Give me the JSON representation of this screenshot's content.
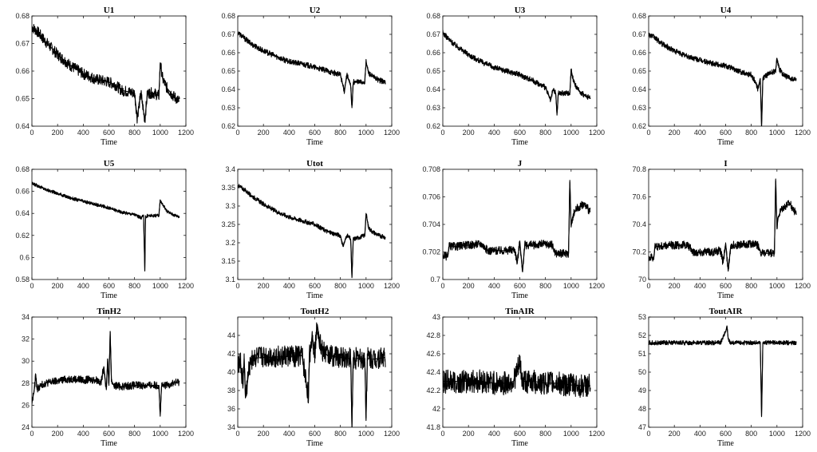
{
  "chart_data": [
    {
      "type": "line",
      "title": "U1",
      "xlabel": "Time",
      "xlim": [
        0,
        1200
      ],
      "ylim": [
        0.64,
        0.68
      ],
      "xticks": [
        "0",
        "200",
        "400",
        "600",
        "800",
        "1000",
        "1200"
      ],
      "yticks": [
        "0.64",
        "0.65",
        "0.66",
        "0.67",
        "0.68"
      ],
      "series": [
        {
          "x": [
            0,
            50,
            100,
            200,
            300,
            400,
            500,
            600,
            650,
            700,
            800,
            820,
            850,
            880,
            900,
            950,
            990,
            1000,
            1020,
            1050,
            1100,
            1150
          ],
          "y": [
            0.676,
            0.674,
            0.671,
            0.666,
            0.662,
            0.659,
            0.657,
            0.656,
            0.655,
            0.653,
            0.652,
            0.643,
            0.652,
            0.642,
            0.652,
            0.652,
            0.651,
            0.663,
            0.657,
            0.654,
            0.651,
            0.649
          ],
          "amp": 0.002
        }
      ]
    },
    {
      "type": "line",
      "title": "U2",
      "xlabel": "Time",
      "xlim": [
        0,
        1200
      ],
      "ylim": [
        0.62,
        0.68
      ],
      "xticks": [
        "0",
        "200",
        "400",
        "600",
        "800",
        "1000",
        "1200"
      ],
      "yticks": [
        "0.62",
        "0.63",
        "0.64",
        "0.65",
        "0.66",
        "0.67",
        "0.68"
      ],
      "series": [
        {
          "x": [
            0,
            50,
            100,
            200,
            300,
            400,
            500,
            600,
            700,
            800,
            830,
            850,
            880,
            890,
            900,
            950,
            990,
            1000,
            1020,
            1050,
            1100,
            1150
          ],
          "y": [
            0.671,
            0.668,
            0.665,
            0.661,
            0.658,
            0.655,
            0.654,
            0.652,
            0.65,
            0.648,
            0.639,
            0.648,
            0.642,
            0.63,
            0.644,
            0.644,
            0.644,
            0.655,
            0.649,
            0.647,
            0.645,
            0.644
          ],
          "amp": 0.0015
        }
      ]
    },
    {
      "type": "line",
      "title": "U3",
      "xlabel": "Time",
      "xlim": [
        0,
        1200
      ],
      "ylim": [
        0.62,
        0.68
      ],
      "xticks": [
        "0",
        "200",
        "400",
        "600",
        "800",
        "1000",
        "1200"
      ],
      "yticks": [
        "0.62",
        "0.63",
        "0.64",
        "0.65",
        "0.66",
        "0.67",
        "0.68"
      ],
      "series": [
        {
          "x": [
            0,
            50,
            100,
            200,
            300,
            400,
            500,
            600,
            700,
            800,
            840,
            860,
            880,
            890,
            900,
            950,
            990,
            1000,
            1020,
            1050,
            1100,
            1150
          ],
          "y": [
            0.671,
            0.667,
            0.664,
            0.659,
            0.655,
            0.652,
            0.65,
            0.648,
            0.645,
            0.641,
            0.634,
            0.64,
            0.638,
            0.626,
            0.638,
            0.638,
            0.638,
            0.651,
            0.644,
            0.64,
            0.637,
            0.635
          ],
          "amp": 0.0015
        }
      ]
    },
    {
      "type": "line",
      "title": "U4",
      "xlabel": "Time",
      "xlim": [
        0,
        1200
      ],
      "ylim": [
        0.62,
        0.68
      ],
      "xticks": [
        "0",
        "200",
        "400",
        "600",
        "800",
        "1000",
        "1200"
      ],
      "yticks": [
        "0.62",
        "0.63",
        "0.64",
        "0.65",
        "0.66",
        "0.67",
        "0.68"
      ],
      "series": [
        {
          "x": [
            0,
            50,
            100,
            200,
            300,
            400,
            500,
            600,
            700,
            800,
            840,
            850,
            870,
            880,
            890,
            900,
            950,
            990,
            1000,
            1020,
            1050,
            1100,
            1150
          ],
          "y": [
            0.67,
            0.668,
            0.665,
            0.661,
            0.658,
            0.656,
            0.654,
            0.653,
            0.65,
            0.648,
            0.643,
            0.64,
            0.646,
            0.62,
            0.645,
            0.647,
            0.649,
            0.65,
            0.657,
            0.651,
            0.648,
            0.646,
            0.645
          ],
          "amp": 0.0015
        }
      ]
    },
    {
      "type": "line",
      "title": "U5",
      "xlabel": "Time",
      "xlim": [
        0,
        1200
      ],
      "ylim": [
        0.58,
        0.68
      ],
      "xticks": [
        "0",
        "200",
        "400",
        "600",
        "800",
        "1000",
        "1200"
      ],
      "yticks": [
        "0.58",
        "0.6",
        "0.62",
        "0.64",
        "0.66",
        "0.68"
      ],
      "series": [
        {
          "x": [
            0,
            50,
            100,
            200,
            300,
            400,
            500,
            600,
            650,
            700,
            800,
            850,
            870,
            880,
            885,
            890,
            900,
            950,
            990,
            1000,
            1050,
            1100,
            1150
          ],
          "y": [
            0.667,
            0.665,
            0.662,
            0.658,
            0.654,
            0.651,
            0.648,
            0.645,
            0.643,
            0.641,
            0.639,
            0.636,
            0.638,
            0.588,
            0.638,
            0.636,
            0.638,
            0.638,
            0.638,
            0.652,
            0.642,
            0.639,
            0.637
          ],
          "amp": 0.0015
        }
      ]
    },
    {
      "type": "line",
      "title": "Utot",
      "xlabel": "Time",
      "xlim": [
        0,
        1200
      ],
      "ylim": [
        3.1,
        3.4
      ],
      "xticks": [
        "0",
        "200",
        "400",
        "600",
        "800",
        "1000",
        "1200"
      ],
      "yticks": [
        "3.1",
        "3.15",
        "3.2",
        "3.25",
        "3.3",
        "3.35",
        "3.4"
      ],
      "series": [
        {
          "x": [
            0,
            50,
            100,
            200,
            300,
            400,
            500,
            600,
            650,
            700,
            800,
            820,
            850,
            880,
            890,
            900,
            950,
            990,
            1000,
            1020,
            1050,
            1100,
            1150
          ],
          "y": [
            3.356,
            3.345,
            3.33,
            3.305,
            3.285,
            3.27,
            3.26,
            3.25,
            3.24,
            3.23,
            3.22,
            3.19,
            3.22,
            3.21,
            3.105,
            3.21,
            3.215,
            3.22,
            3.28,
            3.24,
            3.23,
            3.22,
            3.215
          ],
          "amp": 0.006
        }
      ]
    },
    {
      "type": "line",
      "title": "J",
      "xlabel": "Time",
      "xlim": [
        0,
        1200
      ],
      "ylim": [
        0.7,
        0.708
      ],
      "xticks": [
        "0",
        "200",
        "400",
        "600",
        "800",
        "1000",
        "1200"
      ],
      "yticks": [
        "0.7",
        "0.702",
        "0.704",
        "0.706",
        "0.708"
      ],
      "series": [
        {
          "x": [
            0,
            40,
            50,
            100,
            200,
            300,
            350,
            400,
            500,
            560,
            580,
            600,
            620,
            640,
            700,
            800,
            850,
            880,
            950,
            980,
            990,
            1000,
            1010,
            1030,
            1050,
            1100,
            1150
          ],
          "y": [
            0.7017,
            0.7017,
            0.7024,
            0.7024,
            0.7025,
            0.7026,
            0.7021,
            0.7021,
            0.7021,
            0.7022,
            0.7012,
            0.7028,
            0.7006,
            0.7025,
            0.7025,
            0.7026,
            0.7025,
            0.7019,
            0.7019,
            0.7019,
            0.7072,
            0.7038,
            0.7045,
            0.705,
            0.7052,
            0.7055,
            0.7049
          ],
          "amp": 0.0003
        }
      ]
    },
    {
      "type": "line",
      "title": "I",
      "xlabel": "Time",
      "xlim": [
        0,
        1200
      ],
      "ylim": [
        70,
        70.8
      ],
      "xticks": [
        "0",
        "200",
        "400",
        "600",
        "800",
        "1000",
        "1200"
      ],
      "yticks": [
        "70",
        "70.2",
        "70.4",
        "70.6",
        "70.8"
      ],
      "series": [
        {
          "x": [
            0,
            40,
            50,
            100,
            200,
            300,
            350,
            400,
            500,
            560,
            580,
            600,
            620,
            640,
            700,
            800,
            850,
            880,
            950,
            980,
            990,
            1000,
            1010,
            1030,
            1050,
            1100,
            1150
          ],
          "y": [
            70.16,
            70.16,
            70.24,
            70.24,
            70.25,
            70.25,
            70.2,
            70.2,
            70.2,
            70.21,
            70.12,
            70.26,
            70.06,
            70.25,
            70.25,
            70.26,
            70.25,
            70.19,
            70.19,
            70.19,
            70.73,
            70.38,
            70.45,
            70.5,
            70.52,
            70.55,
            70.48
          ],
          "amp": 0.03
        }
      ]
    },
    {
      "type": "line",
      "title": "TinH2",
      "xlabel": "Time",
      "xlim": [
        0,
        1200
      ],
      "ylim": [
        24,
        34
      ],
      "xticks": [
        "0",
        "200",
        "400",
        "600",
        "800",
        "1000",
        "1200"
      ],
      "yticks": [
        "24",
        "26",
        "28",
        "30",
        "32",
        "34"
      ],
      "series": [
        {
          "x": [
            0,
            20,
            30,
            40,
            50,
            100,
            200,
            300,
            400,
            500,
            540,
            560,
            580,
            590,
            600,
            610,
            620,
            640,
            700,
            800,
            900,
            990,
            1000,
            1010,
            1050,
            1100,
            1150
          ],
          "y": [
            26.2,
            27.5,
            28.8,
            27.4,
            27.6,
            28,
            28.2,
            28.4,
            28.3,
            28.3,
            28.1,
            29.5,
            27.4,
            30.2,
            27.8,
            32.7,
            28.2,
            27.8,
            27.7,
            27.8,
            27.8,
            27.8,
            25,
            27.7,
            27.8,
            28,
            28.1
          ],
          "amp": 0.35
        }
      ]
    },
    {
      "type": "line",
      "title": "ToutH2",
      "xlabel": "Time",
      "xlim": [
        0,
        1200
      ],
      "ylim": [
        34,
        46
      ],
      "xticks": [
        "0",
        "200",
        "400",
        "600",
        "800",
        "1000",
        "1200"
      ],
      "yticks": [
        "34",
        "36",
        "38",
        "40",
        "42",
        "44"
      ],
      "series": [
        {
          "x": [
            0,
            20,
            40,
            50,
            60,
            100,
            200,
            400,
            500,
            550,
            560,
            580,
            600,
            620,
            650,
            700,
            800,
            880,
            890,
            900,
            990,
            1000,
            1010,
            1050,
            1100,
            1150
          ],
          "y": [
            41,
            41.2,
            38.5,
            41.5,
            37.2,
            41.5,
            41.6,
            41.7,
            41.8,
            37.4,
            41.8,
            44,
            42,
            45.2,
            42.5,
            41.8,
            41.6,
            41.5,
            34,
            41.5,
            41.5,
            35,
            41.5,
            41.4,
            41.5,
            41.6
          ],
          "amp": 1.2
        }
      ]
    },
    {
      "type": "line",
      "title": "TinAIR",
      "xlabel": "Time",
      "xlim": [
        0,
        1200
      ],
      "ylim": [
        41.8,
        43
      ],
      "xticks": [
        "0",
        "200",
        "400",
        "600",
        "800",
        "1000",
        "1200"
      ],
      "yticks": [
        "41.8",
        "42",
        "42.2",
        "42.4",
        "42.6",
        "42.8",
        "43"
      ],
      "series": [
        {
          "x": [
            0,
            100,
            200,
            300,
            400,
            500,
            550,
            580,
            600,
            620,
            700,
            800,
            900,
            1000,
            1100,
            1150
          ],
          "y": [
            42.3,
            42.3,
            42.3,
            42.3,
            42.28,
            42.28,
            42.3,
            42.4,
            42.5,
            42.3,
            42.3,
            42.28,
            42.28,
            42.26,
            42.25,
            42.25
          ],
          "amp": 0.13
        }
      ]
    },
    {
      "type": "line",
      "title": "ToutAIR",
      "xlabel": "Time",
      "xlim": [
        0,
        1200
      ],
      "ylim": [
        47,
        53
      ],
      "xticks": [
        "0",
        "200",
        "400",
        "600",
        "800",
        "1000",
        "1200"
      ],
      "yticks": [
        "47",
        "48",
        "49",
        "50",
        "51",
        "52",
        "53"
      ],
      "series": [
        {
          "x": [
            0,
            100,
            200,
            300,
            400,
            500,
            560,
            580,
            600,
            610,
            620,
            640,
            700,
            800,
            870,
            880,
            890,
            900,
            1000,
            1100,
            1150
          ],
          "y": [
            51.6,
            51.6,
            51.6,
            51.6,
            51.6,
            51.6,
            51.6,
            51.9,
            52.2,
            52.5,
            51.8,
            51.6,
            51.6,
            51.6,
            51.6,
            47.6,
            51.6,
            51.6,
            51.6,
            51.6,
            51.6
          ],
          "amp": 0.12
        }
      ]
    }
  ]
}
